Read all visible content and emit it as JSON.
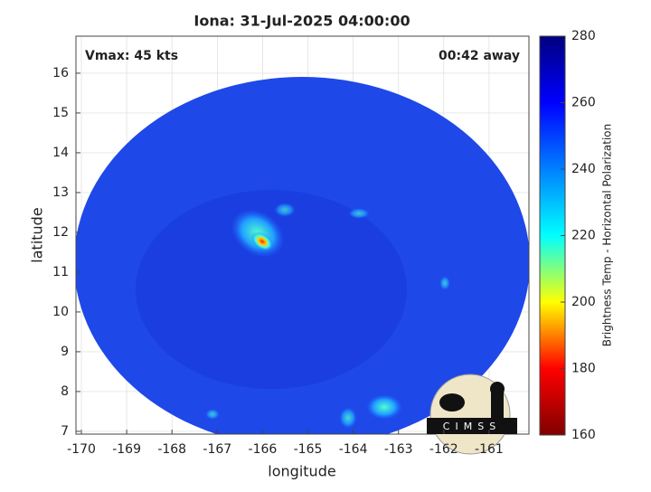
{
  "chart_data": {
    "type": "heatmap",
    "title": "Iona: 31-Jul-2025 04:00:00",
    "annotations": [
      "Vmax: 45 kts",
      "00:42 away"
    ],
    "xlabel": "longitude",
    "ylabel": "latitude",
    "xlim": [
      -170.12,
      -160.12
    ],
    "xticks": [
      -170,
      -169,
      -168,
      -167,
      -166,
      -165,
      -164,
      -163,
      -162,
      -161
    ],
    "ylim": [
      6.93,
      16.93
    ],
    "yticks": [
      7,
      8,
      9,
      10,
      11,
      12,
      13,
      14,
      15,
      16
    ],
    "grid": true,
    "colorbar": {
      "label": "Brightness Temp - Horizontal Polarization",
      "lim": [
        160,
        280
      ],
      "ticks": [
        160,
        180,
        200,
        220,
        240,
        260,
        280
      ],
      "colormap": [
        "#800000",
        "#ff0000",
        "#ffff00",
        "#00ffff",
        "#0080ff",
        "#0000ff",
        "#000080"
      ]
    },
    "logo": "CIMSS"
  }
}
